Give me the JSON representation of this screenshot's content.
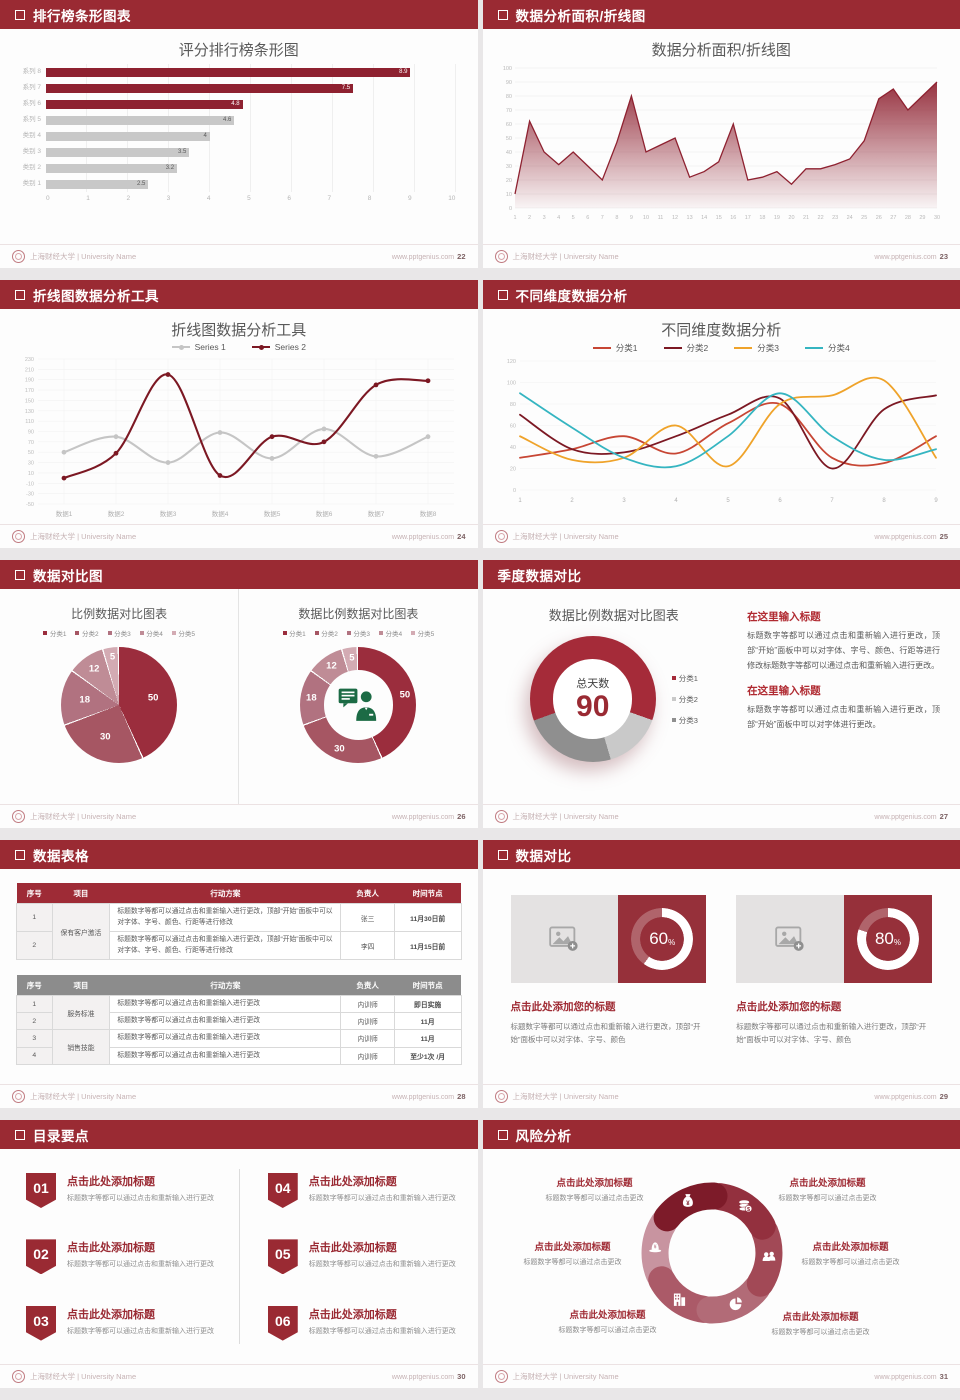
{
  "footer": {
    "school": "上海财经大学 | University Name",
    "site": "www.pptgenius.com"
  },
  "slides": {
    "ranking": {
      "header": "排行榜条形图表",
      "page": "22",
      "chart_data": {
        "type": "bar",
        "orientation": "horizontal",
        "title": "评分排行榜条形图",
        "categories": [
          "系列 8",
          "系列 7",
          "系列 6",
          "系列 5",
          "类别 4",
          "类别 3",
          "类别 2",
          "类别 1"
        ],
        "values": [
          8.9,
          7.5,
          4.8,
          4.6,
          4,
          3.5,
          3.2,
          2.5
        ],
        "bar_colors": [
          "#8e2130",
          "#8e2130",
          "#8e2130",
          "#c8c8c8",
          "#c8c8c8",
          "#c8c8c8",
          "#c8c8c8",
          "#c8c8c8"
        ],
        "xlim": [
          0,
          10
        ],
        "xticks": [
          0,
          1,
          2,
          3,
          4,
          5,
          6,
          7,
          8,
          9,
          10
        ],
        "grid": true
      }
    },
    "area": {
      "header": "数据分析面积/折线图",
      "page": "23",
      "chart_data": {
        "type": "area",
        "title": "数据分析面积/折线图",
        "x": [
          1,
          2,
          3,
          4,
          5,
          6,
          7,
          8,
          9,
          10,
          11,
          12,
          13,
          14,
          15,
          16,
          17,
          18,
          19,
          20,
          21,
          22,
          23,
          24,
          25,
          26,
          27,
          28,
          29,
          30
        ],
        "values": [
          10,
          62,
          40,
          31,
          40,
          30,
          20,
          47,
          80,
          40,
          45,
          50,
          22,
          26,
          33,
          60,
          20,
          22,
          26,
          17,
          28,
          28,
          31,
          35,
          48,
          78,
          85,
          70,
          80,
          90
        ],
        "ylim": [
          0,
          100
        ],
        "ytick_step": 10,
        "line_color": "#8e2130",
        "grid": true
      }
    },
    "line": {
      "header": "折线图数据分析工具",
      "page": "24",
      "chart_data": {
        "type": "line",
        "title": "折线图数据分析工具",
        "categories": [
          "数据1",
          "数据2",
          "数据3",
          "数据4",
          "数据5",
          "数据6",
          "数据7",
          "数据8"
        ],
        "series": [
          {
            "name": "Series 1",
            "color": "#c5c5c5",
            "values": [
              50,
              80,
              30,
              88,
              38,
              95,
              42,
              80
            ]
          },
          {
            "name": "Series 2",
            "color": "#7c1823",
            "values": [
              0,
              48,
              200,
              5,
              80,
              70,
              180,
              188
            ]
          }
        ],
        "ylim": [
          -50,
          230
        ],
        "ytick_step": 20,
        "legend_position": "top",
        "grid": true,
        "markers": true
      }
    },
    "dimensions": {
      "header": "不同维度数据分析",
      "page": "25",
      "chart_data": {
        "type": "line",
        "title": "不同维度数据分析",
        "categories": [
          "1",
          "2",
          "3",
          "4",
          "5",
          "6",
          "7",
          "8",
          "9"
        ],
        "series": [
          {
            "name": "分类1",
            "color": "#c74634",
            "values": [
              30,
              38,
              50,
              34,
              62,
              80,
              30,
              25,
              50
            ]
          },
          {
            "name": "分类2",
            "color": "#7c1823",
            "values": [
              70,
              38,
              35,
              50,
              70,
              85,
              20,
              75,
              88
            ]
          },
          {
            "name": "分类3",
            "color": "#efa32a",
            "values": [
              50,
              28,
              30,
              60,
              22,
              80,
              88,
              102,
              30
            ]
          },
          {
            "name": "分类4",
            "color": "#35b5c1",
            "values": [
              90,
              58,
              30,
              22,
              50,
              90,
              50,
              28,
              38
            ]
          }
        ],
        "ylim": [
          0,
          120
        ],
        "ytick_step": 20,
        "legend_position": "top",
        "grid": true,
        "markers": false
      }
    },
    "pies": {
      "header": "数据对比图",
      "page": "26",
      "left_title": "比例数据对比图表",
      "right_title": "数据比例数据对比图表",
      "chart_data": {
        "type": "pie",
        "legend": [
          "分类1",
          "分类2",
          "分类3",
          "分类4",
          "分类5"
        ],
        "values": [
          50,
          30,
          18,
          12,
          5
        ],
        "colors": [
          "#9b2d3d",
          "#a65663",
          "#b17280",
          "#bf8c96",
          "#d3abb3"
        ],
        "center_icon": "person-chat-icon"
      }
    },
    "quarter": {
      "header": "季度数据对比",
      "page": "27",
      "title": "数据比例数据对比图表",
      "center_label": "总天数",
      "center_value": "90",
      "chart_data": {
        "type": "donut",
        "start_angle": 250,
        "segments": [
          {
            "label": "分类1",
            "value": 61,
            "color": "#a52b39"
          },
          {
            "label": "分类2",
            "value": 15,
            "color": "#c9c9c9"
          },
          {
            "label": "分类3",
            "value": 24,
            "color": "#8f8f8f"
          }
        ]
      },
      "blocks": [
        {
          "heading": "在这里输入标题",
          "body": "标题数字等都可以通过点击和重新输入进行更改，顶部“开始”面板中可以对字体、字号、颜色、行距等进行修改标题数字等都可以通过点击和重新输入进行更改。"
        },
        {
          "heading": "在这里输入标题",
          "body": "标题数字等都可以通过点击和重新输入进行更改，顶部“开始”面板中可以对字体进行更改。"
        }
      ]
    },
    "tables": {
      "header": "数据表格",
      "page": "28",
      "columns": [
        "序号",
        "项目",
        "行动方案",
        "负责人",
        "时间节点"
      ],
      "table1": {
        "header_color": "#9e2b36",
        "groups": [
          {
            "item": "保有客户激活",
            "rows": [
              {
                "no": "1",
                "plan": "标题数字等都可以通过点击和重新输入进行更改，顶部“开始”面板中可以对字体、字号、颜色、行距等进行修改",
                "owner": "张三",
                "time": "11月30日前"
              },
              {
                "no": "2",
                "plan": "标题数字等都可以通过点击和重新输入进行更改，顶部“开始”面板中可以对字体、字号、颜色、行距等进行修改",
                "owner": "李四",
                "time": "11月15日前"
              }
            ]
          }
        ]
      },
      "table2": {
        "header_color": "#8c8c8c",
        "groups": [
          {
            "item": "服务标准",
            "rows": [
              {
                "no": "1",
                "plan": "标题数字等都可以通过点击和重新输入进行更改",
                "owner": "内训师",
                "time": "即日实施"
              },
              {
                "no": "2",
                "plan": "标题数字等都可以通过点击和重新输入进行更改",
                "owner": "内训师",
                "time": "11月"
              }
            ]
          },
          {
            "item": "销售技能",
            "rows": [
              {
                "no": "3",
                "plan": "标题数字等都可以通过点击和重新输入进行更改",
                "owner": "内训师",
                "time": "11月"
              },
              {
                "no": "4",
                "plan": "标题数字等都可以通过点击和重新输入进行更改",
                "owner": "内训师",
                "time": "至少1次 /月"
              }
            ]
          }
        ]
      }
    },
    "compare": {
      "header": "数据对比",
      "page": "29",
      "cards": [
        {
          "percent": 60,
          "title": "点击此处添加您的标题",
          "body": "标题数字等都可以通过点击和重新输入进行更改，顶部“开始”面板中可以对字体、字号、颜色"
        },
        {
          "percent": 80,
          "title": "点击此处添加您的标题",
          "body": "标题数字等都可以通过点击和重新输入进行更改，顶部“开始”面板中可以对字体、字号、颜色"
        }
      ]
    },
    "toc": {
      "header": "目录要点",
      "page": "30",
      "items": [
        {
          "num": "01",
          "title": "点击此处添加标题",
          "body": "标题数字等都可以通过点击和重新输入进行更改"
        },
        {
          "num": "02",
          "title": "点击此处添加标题",
          "body": "标题数字等都可以通过点击和重新输入进行更改"
        },
        {
          "num": "03",
          "title": "点击此处添加标题",
          "body": "标题数字等都可以通过点击和重新输入进行更改"
        },
        {
          "num": "04",
          "title": "点击此处添加标题",
          "body": "标题数字等都可以通过点击和重新输入进行更改"
        },
        {
          "num": "05",
          "title": "点击此处添加标题",
          "body": "标题数字等都可以通过点击和重新输入进行更改"
        },
        {
          "num": "06",
          "title": "点击此处添加标题",
          "body": "标题数字等都可以通过点击和重新输入进行更改"
        }
      ]
    },
    "risk": {
      "header": "风险分析",
      "page": "31",
      "items": [
        {
          "icon": "money-bag-icon",
          "title": "点击此处添加标题",
          "body": "标题数字等都可以通过点击更改"
        },
        {
          "icon": "coins-icon",
          "title": "点击此处添加标题",
          "body": "标题数字等都可以通过点击更改"
        },
        {
          "icon": "money-hat-icon",
          "title": "点击此处添加标题",
          "body": "标题数字等都可以通过点击更改"
        },
        {
          "icon": "people-icon",
          "title": "点击此处添加标题",
          "body": "标题数字等都可以通过点击更改"
        },
        {
          "icon": "building-icon",
          "title": "点击此处添加标题",
          "body": "标题数字等都可以通过点击更改"
        },
        {
          "icon": "pie-chart-icon",
          "title": "点击此处添加标题",
          "body": "标题数字等都可以通过点击更改"
        }
      ],
      "segments": [
        {
          "icon": "money-hat-icon",
          "angle": 275,
          "color": "#c894a0"
        },
        {
          "icon": "building-icon",
          "angle": 215,
          "color": "#ab5a68"
        },
        {
          "icon": "pie-chart-icon",
          "angle": 155,
          "color": "#b26b77"
        },
        {
          "icon": "people-icon",
          "angle": 95,
          "color": "#a24956"
        },
        {
          "icon": "coins-icon",
          "angle": 35,
          "color": "#93303e"
        },
        {
          "icon": "money-bag-icon",
          "angle": -25,
          "color": "#7d1b29"
        }
      ]
    }
  }
}
